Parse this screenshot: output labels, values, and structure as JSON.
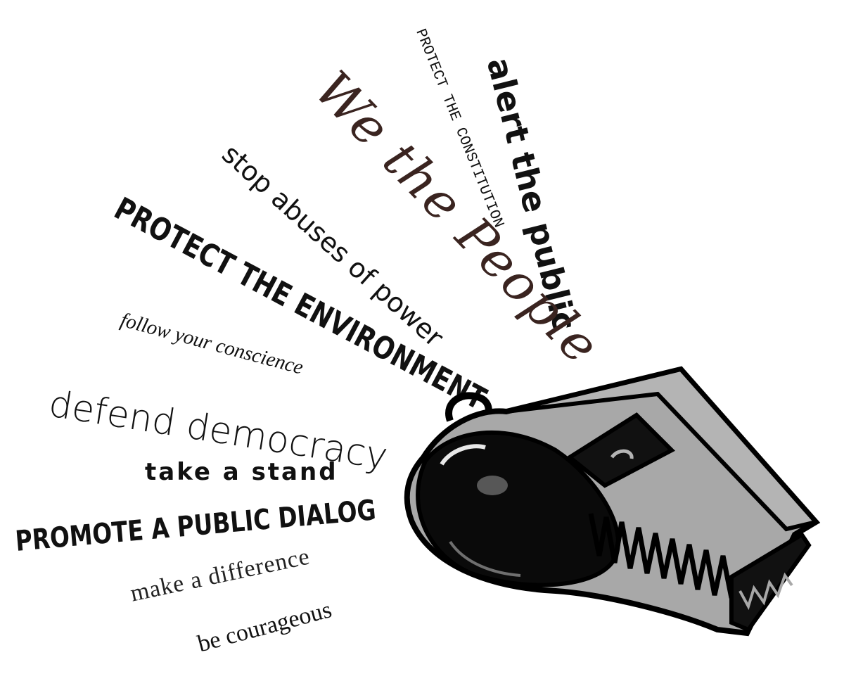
{
  "phrases": {
    "alert": "alert the public",
    "constitution": "PROTECT THE CONSTITUTION",
    "people": "We the People",
    "stop": "stop abuses of power",
    "environment": "PROTECT THE ENVIRONMENT",
    "conscience": "follow your conscience",
    "democracy": "defend democracy",
    "stand": "take a stand",
    "dialog": "PROMOTE A PUBLIC DIALOG",
    "difference": "make a difference",
    "courageous": "be courageous"
  },
  "colors": {
    "ink": "#111111",
    "whistle_body": "#a8a8a8",
    "whistle_dark": "#0a0a0a",
    "script_ink": "#3a2420"
  },
  "icons": {
    "whistle": "whistle-icon"
  }
}
